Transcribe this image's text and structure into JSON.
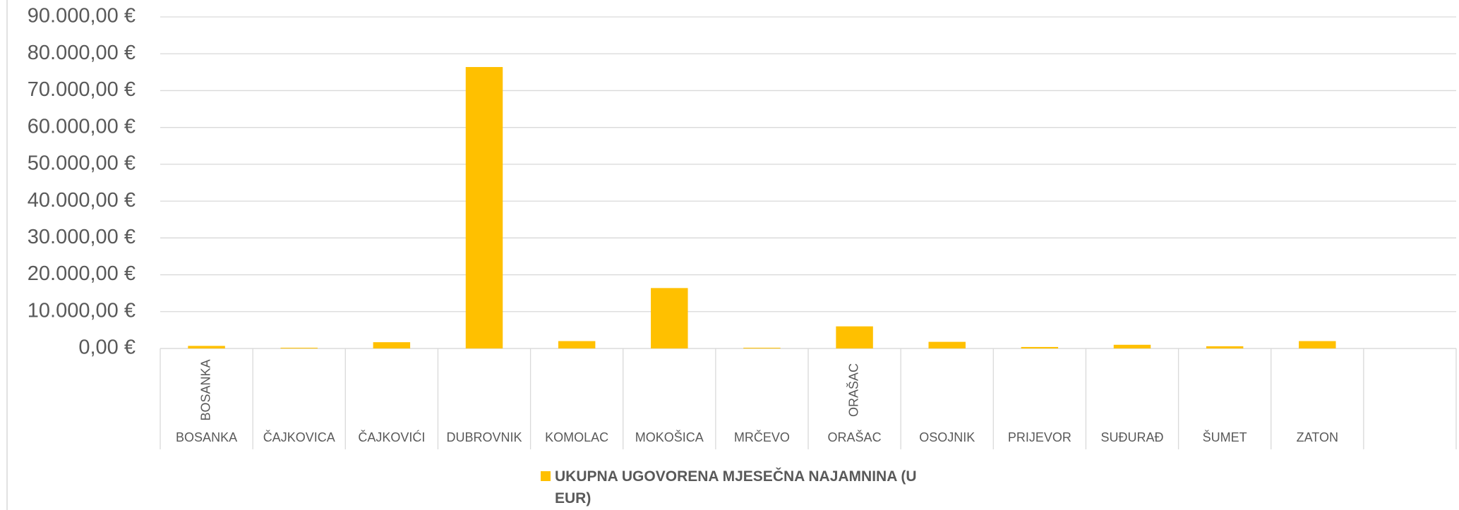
{
  "chart_data": {
    "type": "bar",
    "categories": [
      "BOSANKA",
      "ČAJKOVICA",
      "ČAJKOVIĆI",
      "DUBROVNIK",
      "KOMOLAC",
      "MOKOŠICA",
      "MRČEVO",
      "ORAŠAC",
      "OSOJNIK",
      "PRIJEVOR",
      "SUĐURAĐ",
      "ŠUMET",
      "ZATON",
      null
    ],
    "inner_labels": [
      "BOSANKA",
      null,
      null,
      null,
      null,
      null,
      null,
      "ORAŠAC",
      null,
      null,
      null,
      null,
      null,
      null
    ],
    "series": [
      {
        "name": "UKUPNA UGOVORENA MJESEČNA NAJAMNINA (U EUR)",
        "color": "#ffc000",
        "values": [
          700,
          200,
          1700,
          76400,
          2000,
          16400,
          200,
          6000,
          1800,
          400,
          1000,
          600,
          2000,
          null
        ]
      }
    ],
    "ylim": [
      0,
      90000
    ],
    "yticks": [
      {
        "value": 0,
        "label": "0,00 €"
      },
      {
        "value": 10000,
        "label": "10.000,00 €"
      },
      {
        "value": 20000,
        "label": "20.000,00 €"
      },
      {
        "value": 30000,
        "label": "30.000,00 €"
      },
      {
        "value": 40000,
        "label": "40.000,00 €"
      },
      {
        "value": 50000,
        "label": "50.000,00 €"
      },
      {
        "value": 60000,
        "label": "60.000,00 €"
      },
      {
        "value": 70000,
        "label": "70.000,00 €"
      },
      {
        "value": 80000,
        "label": "80.000,00 €"
      },
      {
        "value": 90000,
        "label": "90.000,00 €"
      }
    ],
    "grid": true,
    "legend": "bottom"
  }
}
